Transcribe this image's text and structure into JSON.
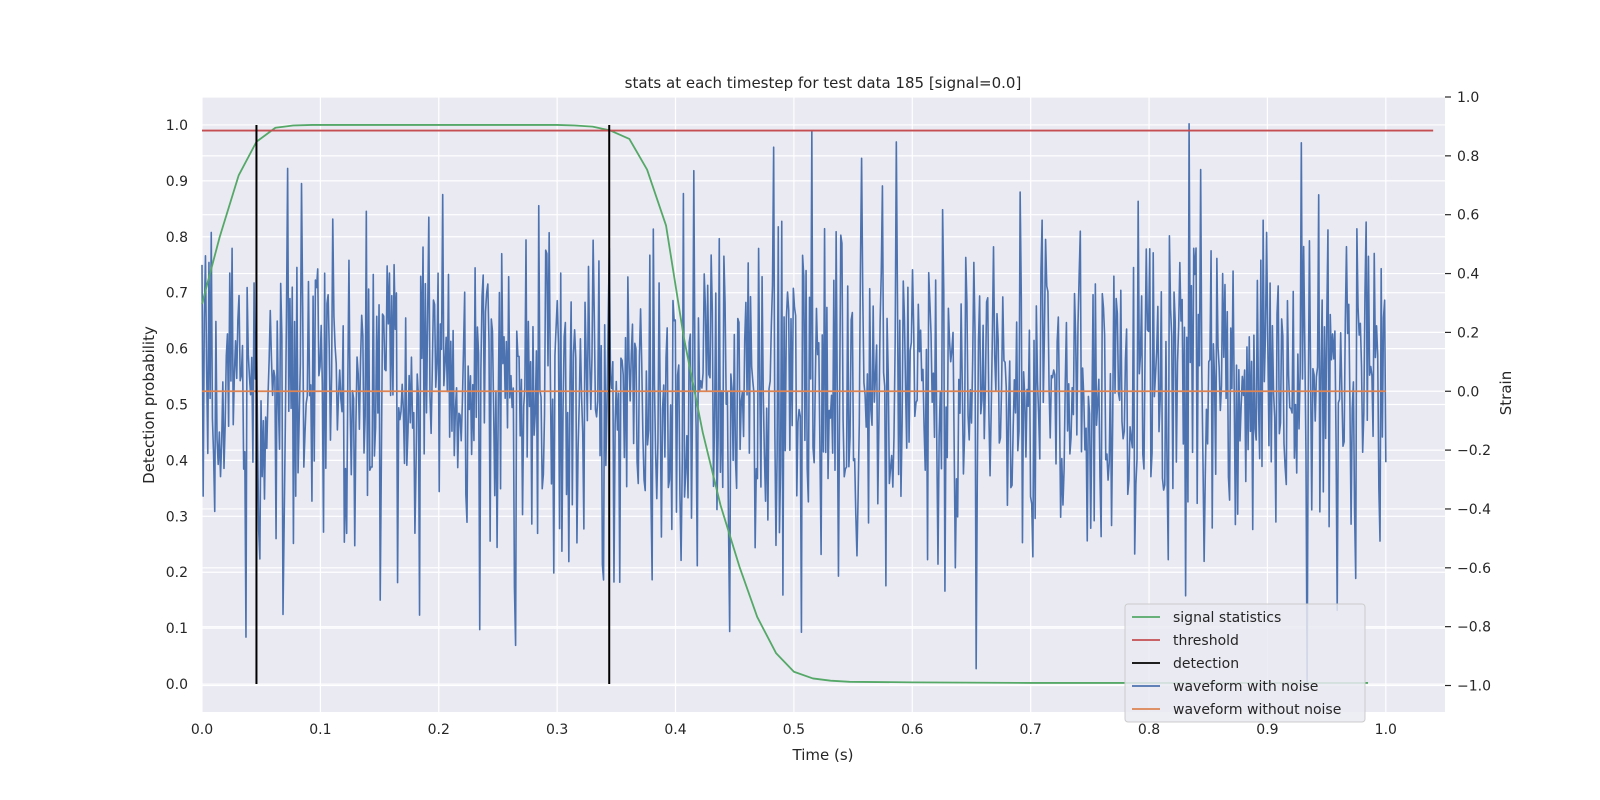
{
  "chart_data": {
    "type": "line",
    "title": "stats at each timestep for test data 185 [signal=0.0]",
    "xlabel": "Time (s)",
    "ylabel": "Detection probability",
    "ylabel_right": "Strain",
    "xlim": [
      0.0,
      1.05
    ],
    "ylim": [
      -0.05,
      1.05
    ],
    "ylim_right": [
      -1.09,
      1.0
    ],
    "x_ticks": [
      0.0,
      0.1,
      0.2,
      0.3,
      0.4,
      0.5,
      0.6,
      0.7,
      0.8,
      0.9,
      1.0
    ],
    "x_tick_labels": [
      "0.0",
      "0.1",
      "0.2",
      "0.3",
      "0.4",
      "0.5",
      "0.6",
      "0.7",
      "0.8",
      "0.9",
      "1.0"
    ],
    "y_ticks": [
      0.0,
      0.1,
      0.2,
      0.3,
      0.4,
      0.5,
      0.6,
      0.7,
      0.8,
      0.9,
      1.0
    ],
    "y_tick_labels": [
      "0.0",
      "0.1",
      "0.2",
      "0.3",
      "0.4",
      "0.5",
      "0.6",
      "0.7",
      "0.8",
      "0.9",
      "1.0"
    ],
    "y_right_ticks": [
      -1.0,
      -0.8,
      -0.6,
      -0.4,
      -0.2,
      0.0,
      0.2,
      0.4,
      0.6,
      0.8,
      1.0
    ],
    "y_right_tick_labels": [
      "−1.0",
      "−0.8",
      "−0.6",
      "−0.4",
      "−0.2",
      "0.0",
      "0.2",
      "0.4",
      "0.6",
      "0.8",
      "1.0"
    ],
    "grid": true,
    "legend_position": "lower-right",
    "series": [
      {
        "name": "signal statistics",
        "color": "#55a868",
        "axis": "left",
        "x": [
          0.0,
          0.015,
          0.031,
          0.046,
          0.062,
          0.077,
          0.093,
          0.108,
          0.124,
          0.139,
          0.2,
          0.25,
          0.3,
          0.315,
          0.33,
          0.345,
          0.361,
          0.376,
          0.392,
          0.407,
          0.423,
          0.438,
          0.454,
          0.469,
          0.485,
          0.5,
          0.516,
          0.531,
          0.547,
          0.6,
          0.7,
          0.8,
          0.9,
          0.985
        ],
        "y": [
          0.68,
          0.8,
          0.91,
          0.97,
          0.995,
          0.999,
          1.0,
          1.0,
          1.0,
          1.0,
          1.0,
          1.0,
          1.0,
          0.999,
          0.997,
          0.99,
          0.975,
          0.92,
          0.82,
          0.62,
          0.45,
          0.32,
          0.21,
          0.12,
          0.055,
          0.022,
          0.01,
          0.006,
          0.004,
          0.003,
          0.002,
          0.002,
          0.002,
          0.002
        ]
      },
      {
        "name": "threshold",
        "color": "#c44e52",
        "axis": "left",
        "x": [
          0.0,
          1.04
        ],
        "y": [
          0.99,
          0.99
        ]
      },
      {
        "name": "detection",
        "color": "#000000",
        "axis": "left",
        "x": [
          0.046,
          0.344
        ],
        "y_from": 0.0,
        "y_to": 1.0
      },
      {
        "name": "waveform with noise",
        "color": "#4c72b0",
        "axis": "right",
        "x_start": 0.0,
        "x_end": 1.0,
        "count": 1024,
        "y_min": -1.0,
        "y_max": 0.92,
        "std": 0.3
      },
      {
        "name": "waveform without noise",
        "color": "#dd8452",
        "axis": "right",
        "x": [
          0.0,
          1.0
        ],
        "y": [
          0.0,
          0.0
        ]
      }
    ]
  }
}
